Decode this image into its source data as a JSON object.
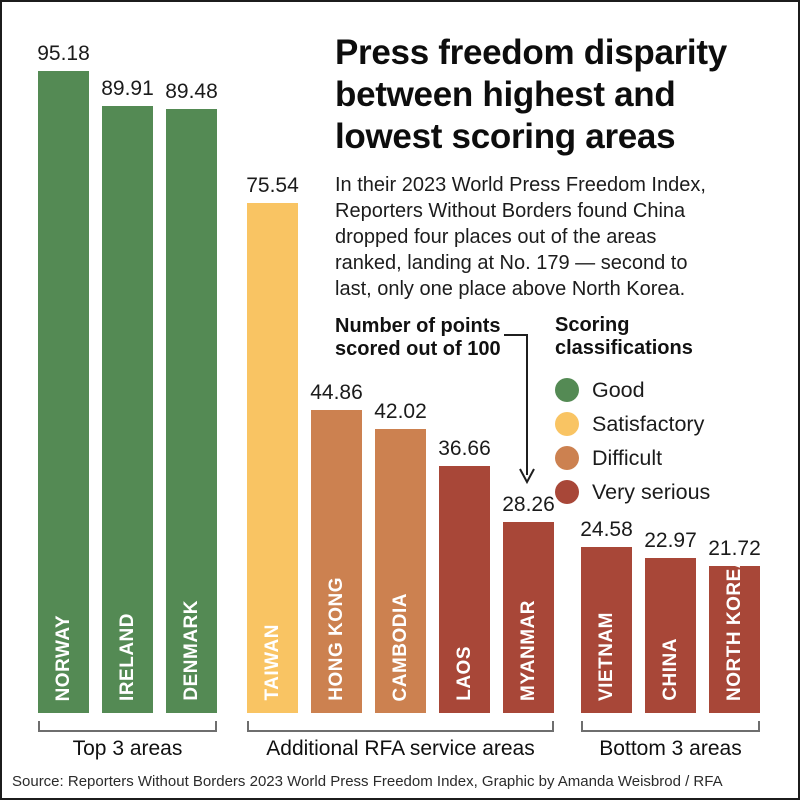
{
  "header": {
    "title": "Press freedom disparity\nbetween highest and\nlowest scoring areas",
    "description": "In their 2023 World Press Freedom Index,\nReporters Without Borders found China\ndropped four places out of the areas\nranked, landing at No. 179 — second to\nlast, only one place above North Korea."
  },
  "chart_data": {
    "type": "bar",
    "ylim": [
      0,
      100
    ],
    "grid": false,
    "annotation": "Number of points\nscored out of 100",
    "legend_title": "Scoring\nclassifications",
    "legend_position": "right",
    "legend": [
      {
        "label": "Good",
        "color": "#548A54"
      },
      {
        "label": "Satisfactory",
        "color": "#F9C463"
      },
      {
        "label": "Difficult",
        "color": "#CC8150"
      },
      {
        "label": "Very serious",
        "color": "#A84738"
      }
    ],
    "groups": [
      {
        "label": "Top 3 areas",
        "bars": [
          {
            "name": "NORWAY",
            "value": 95.18,
            "classification": "Good"
          },
          {
            "name": "IRELAND",
            "value": 89.91,
            "classification": "Good"
          },
          {
            "name": "DENMARK",
            "value": 89.48,
            "classification": "Good"
          }
        ]
      },
      {
        "label": "Additional RFA service areas",
        "bars": [
          {
            "name": "TAIWAN",
            "value": 75.54,
            "classification": "Satisfactory"
          },
          {
            "name": "HONG KONG",
            "value": 44.86,
            "classification": "Difficult"
          },
          {
            "name": "CAMBODIA",
            "value": 42.02,
            "classification": "Difficult"
          },
          {
            "name": "LAOS",
            "value": 36.66,
            "classification": "Very serious"
          },
          {
            "name": "MYANMAR",
            "value": 28.26,
            "classification": "Very serious"
          }
        ]
      },
      {
        "label": "Bottom 3 areas",
        "bars": [
          {
            "name": "VIETNAM",
            "value": 24.58,
            "classification": "Very serious"
          },
          {
            "name": "CHINA",
            "value": 22.97,
            "classification": "Very serious"
          },
          {
            "name": "NORTH KOREA",
            "value": 21.72,
            "classification": "Very serious"
          }
        ]
      }
    ]
  },
  "source": "Source: Reporters Without Borders 2023 World Press Freedom Index, Graphic by Amanda Weisbrod / RFA"
}
